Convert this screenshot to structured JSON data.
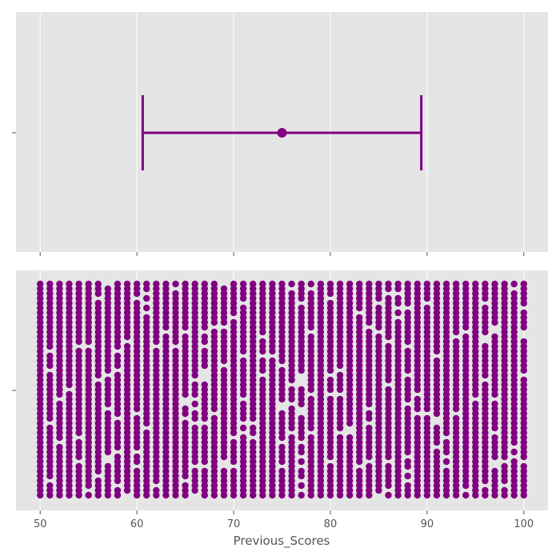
{
  "chart_data": [
    {
      "type": "errorbar",
      "panel": "top",
      "orientation": "horizontal",
      "point": 75.0,
      "lower": 60.6,
      "upper": 89.4,
      "color": "#800080",
      "xlim": [
        47.5,
        102.5
      ],
      "x_ticks": [
        50,
        60,
        70,
        80,
        90,
        100
      ],
      "show_tick_labels": false,
      "grid": true,
      "background": "#e5e5e5"
    },
    {
      "type": "strip",
      "panel": "bottom",
      "orientation": "horizontal",
      "x_values": [
        50,
        51,
        52,
        53,
        54,
        55,
        56,
        57,
        58,
        59,
        60,
        61,
        62,
        63,
        64,
        65,
        66,
        67,
        68,
        69,
        70,
        71,
        72,
        73,
        74,
        75,
        76,
        77,
        78,
        79,
        80,
        81,
        82,
        83,
        84,
        85,
        86,
        87,
        88,
        89,
        90,
        91,
        92,
        93,
        94,
        95,
        96,
        97,
        98,
        99,
        100
      ],
      "color": "#800080",
      "xlim": [
        47.5,
        102.5
      ],
      "x_ticks": [
        "50",
        "60",
        "70",
        "80",
        "90",
        "100"
      ],
      "xlabel": "Previous_Scores",
      "grid": true,
      "background": "#e5e5e5"
    }
  ]
}
